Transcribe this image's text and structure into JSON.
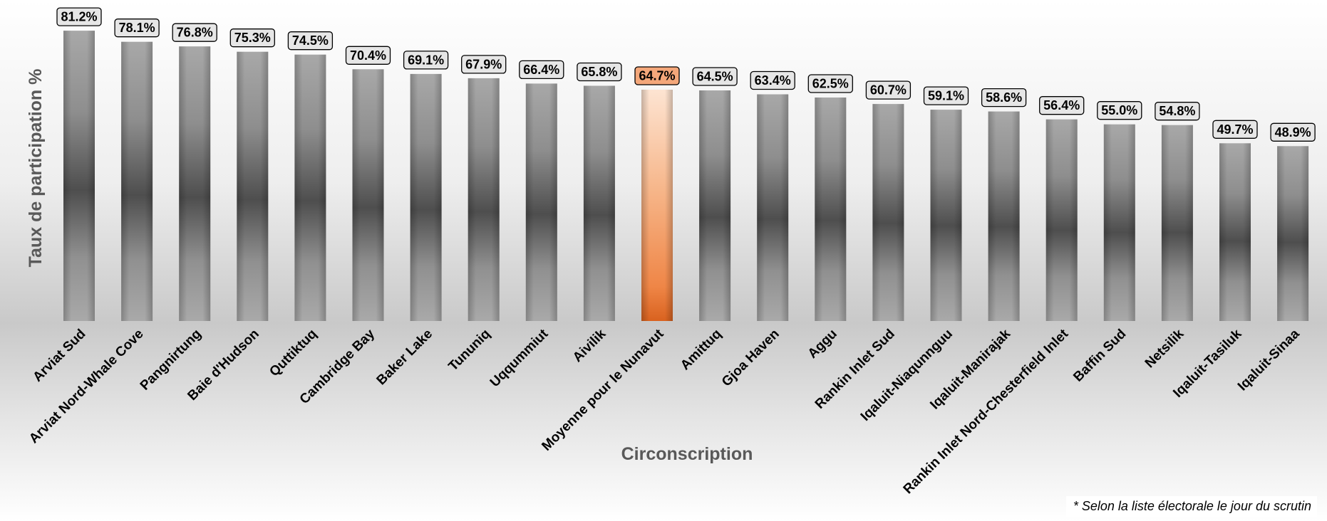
{
  "chart_data": {
    "type": "bar",
    "title": "",
    "xlabel": "Circonscription",
    "ylabel": "Taux de participation %",
    "ylim": [
      0,
      85
    ],
    "grid": false,
    "legend": "none",
    "highlight_category": "Moyenne pour le Nunavut",
    "categories": [
      "Arviat Sud",
      "Arviat Nord-Whale Cove",
      "Pangnirtung",
      "Baie d'Hudson",
      "Quttiktuq",
      "Cambridge Bay",
      "Baker Lake",
      "Tununiq",
      "Uqqummiut",
      "Aivilik",
      "Moyenne pour le Nunavut",
      "Amittuq",
      "Gjoa Haven",
      "Aggu",
      "Rankin Inlet Sud",
      "Iqaluit-Niaqunnguu",
      "Iqaluit-Manirajak",
      "Rankin Inlet Nord-Chesterfield Inlet",
      "Baffin Sud",
      "Netsilik",
      "Iqaluit-Tasiluk",
      "Iqaluit-Sinaa"
    ],
    "values": [
      81.2,
      78.1,
      76.8,
      75.3,
      74.5,
      70.4,
      69.1,
      67.9,
      66.4,
      65.8,
      64.7,
      64.5,
      63.4,
      62.5,
      60.7,
      59.1,
      58.6,
      56.4,
      55.0,
      54.8,
      49.7,
      48.9
    ],
    "data_labels": [
      "81.2%",
      "78.1%",
      "76.8%",
      "75.3%",
      "74.5%",
      "70.4%",
      "69.1%",
      "67.9%",
      "66.4%",
      "65.8%",
      "64.7%",
      "64.5%",
      "63.4%",
      "62.5%",
      "60.7%",
      "59.1%",
      "58.6%",
      "56.4%",
      "55.0%",
      "54.8%",
      "49.7%",
      "48.9%"
    ],
    "colors": {
      "bar": "#7f7f7f",
      "highlight": "#f08a4b",
      "label_box": "#e6e6e6",
      "highlight_label_box": "#f4a77a"
    }
  },
  "footnote": "* Selon la liste électorale le jour du scrutin"
}
